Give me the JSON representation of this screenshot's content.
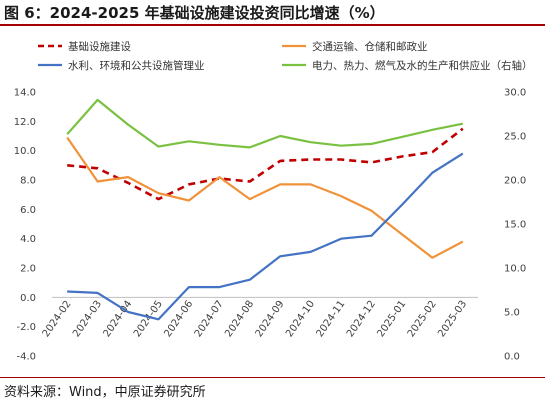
{
  "title": "图 6：2024-2025 年基础设施建设投资同比增速（%）",
  "source": "资料来源：Wind，中原证券研究所",
  "chart_data": {
    "type": "line",
    "categories": [
      "2024-02",
      "2024-03",
      "2024-04",
      "2024-05",
      "2024-06",
      "2024-07",
      "2024-08",
      "2024-09",
      "2024-10",
      "2024-11",
      "2024-12",
      "2025-01",
      "2025-02",
      "2025-03"
    ],
    "left_ticks": [
      "14.0",
      "12.0",
      "10.0",
      "8.0",
      "6.0",
      "4.0",
      "2.0",
      "0.0",
      "-2.0",
      "-4.0"
    ],
    "right_ticks": [
      "30.0",
      "25.0",
      "20.0",
      "15.0",
      "10.0",
      "5.0",
      "0.0"
    ],
    "ylim_left": [
      -4,
      14
    ],
    "ylim_right": [
      0,
      30
    ],
    "legend_position": "top",
    "grid": false,
    "series": [
      {
        "name": "基础设施建设",
        "axis": "left",
        "color": "#c00000",
        "dashed": true,
        "values": [
          9.0,
          8.8,
          7.8,
          6.7,
          7.7,
          8.1,
          7.9,
          9.3,
          9.4,
          9.4,
          9.2,
          9.6,
          9.9,
          11.5
        ]
      },
      {
        "name": "交通运输、仓储和邮政业",
        "axis": "left",
        "color": "#f0923a",
        "dashed": false,
        "values": [
          10.9,
          7.9,
          8.2,
          7.1,
          6.6,
          8.2,
          6.7,
          7.7,
          7.7,
          6.9,
          5.9,
          4.3,
          2.7,
          3.8
        ]
      },
      {
        "name": "水利、环境和公共设施管理业",
        "axis": "left",
        "color": "#4472c4",
        "dashed": false,
        "values": [
          0.4,
          0.3,
          -1.0,
          -1.5,
          0.7,
          0.7,
          1.2,
          2.8,
          3.1,
          4.0,
          4.2,
          6.3,
          8.5,
          9.8
        ]
      },
      {
        "name": "电力、热力、燃气及水的生产和供应业（右轴）",
        "axis": "right",
        "color": "#7ac142",
        "dashed": false,
        "values": [
          25.2,
          29.1,
          26.3,
          23.8,
          24.4,
          24.0,
          23.7,
          25.0,
          24.3,
          23.9,
          24.1,
          24.9,
          25.7,
          26.4
        ]
      }
    ]
  }
}
